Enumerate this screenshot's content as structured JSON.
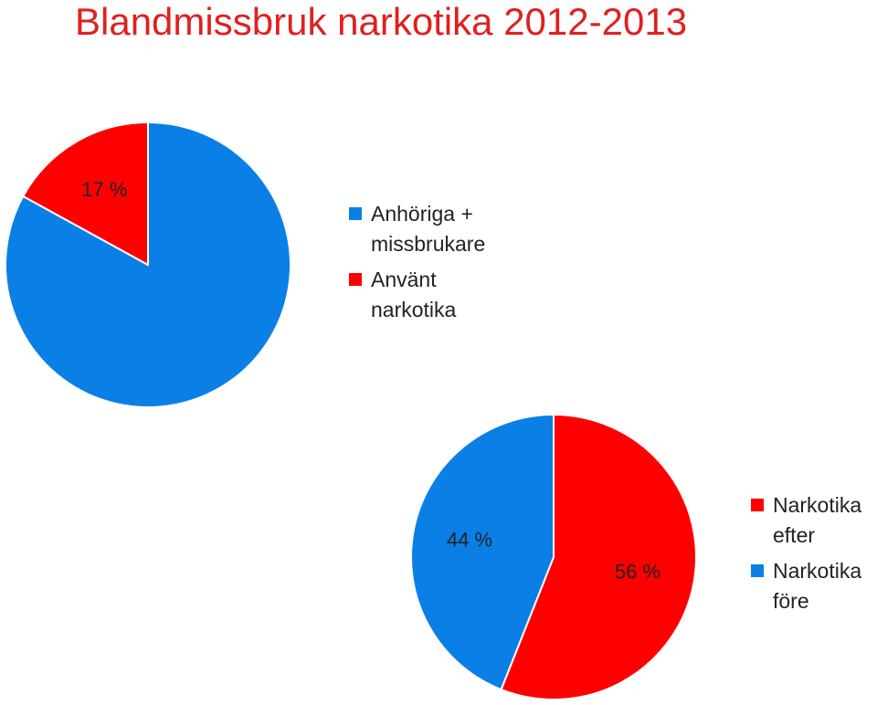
{
  "title": "Blandmissbruk narkotika 2012-2013",
  "chart_data": [
    {
      "type": "pie",
      "categories": [
        "Anhöriga + missbrukare",
        "Använt narkotika"
      ],
      "values": [
        83,
        17
      ],
      "value_labels": [
        null,
        "17 %"
      ],
      "colors": [
        "#0a7fe6",
        "#ff0000"
      ]
    },
    {
      "type": "pie",
      "categories": [
        "Narkotika efter",
        "Narkotika före"
      ],
      "values": [
        56,
        44
      ],
      "value_labels": [
        "56 %",
        "44 %"
      ],
      "colors": [
        "#ff0000",
        "#0a7fe6"
      ]
    }
  ]
}
